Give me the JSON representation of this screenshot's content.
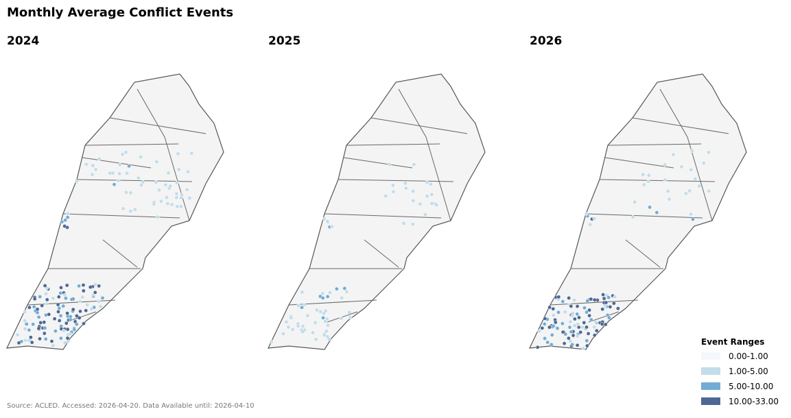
{
  "title": "Monthly Average Conflict Events",
  "panels": [
    {
      "title": "2024"
    },
    {
      "title": "2025"
    },
    {
      "title": "2026"
    }
  ],
  "legend": {
    "title": "Event Ranges",
    "items": [
      {
        "label": "0.00-1.00",
        "color": "#f3f8fc"
      },
      {
        "label": "1.00-5.00",
        "color": "#c2dcea"
      },
      {
        "label": "5.00-10.00",
        "color": "#72acd5"
      },
      {
        "label": "10.00-33.00",
        "color": "#4e6893"
      }
    ]
  },
  "source": "Source: ACLED. Accessed: 2026-04-20. Data Available until: 2026-04-10"
}
